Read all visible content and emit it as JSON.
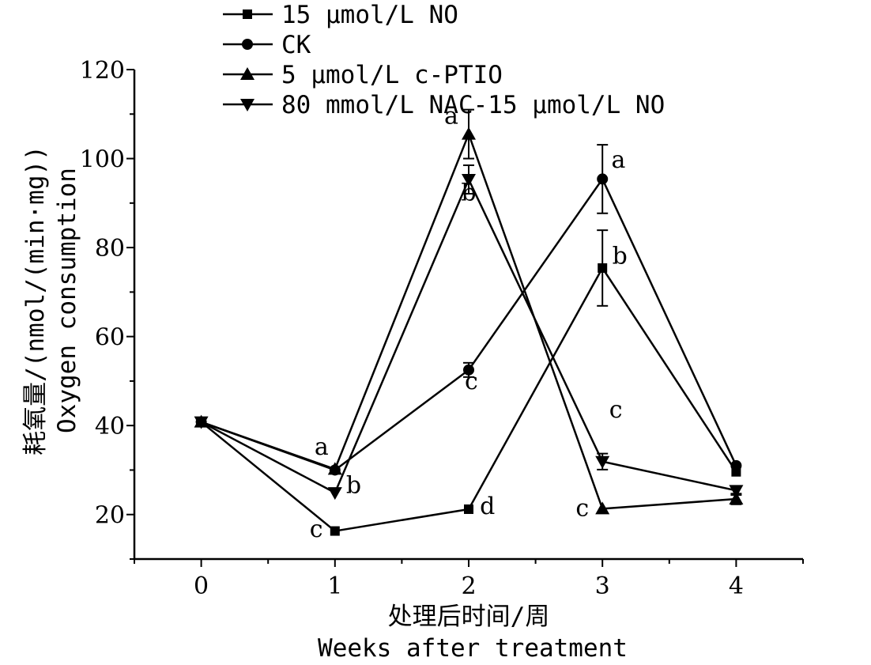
{
  "chart_data": {
    "type": "line",
    "x": [
      0,
      1,
      2,
      3,
      4
    ],
    "xlim": [
      -0.5,
      4.5
    ],
    "ylim": [
      10,
      120
    ],
    "xticks": [
      "0",
      "1",
      "2",
      "3",
      "4"
    ],
    "yticks": [
      "20",
      "40",
      "60",
      "80",
      "100",
      "120"
    ],
    "xlabel_cn": "处理后时间/周",
    "xlabel_en": "Weeks after treatment",
    "ylabel_cn": "耗氧量/(nmol/(min·mg))",
    "ylabel_en": "Oxygen consumption",
    "grid": false,
    "legend_position": "top-left",
    "series": [
      {
        "name": "15 μmol/L NO",
        "marker": "square",
        "values": [
          40.8,
          16.3,
          21.2,
          75.4,
          29.6
        ],
        "errors": [
          0,
          0,
          0,
          8.5,
          0
        ]
      },
      {
        "name": "CK",
        "marker": "circle",
        "values": [
          40.8,
          30.0,
          52.5,
          95.4,
          31.0
        ],
        "errors": [
          0,
          0,
          1.6,
          7.7,
          0
        ]
      },
      {
        "name": "5 μmol/L c-PTIO",
        "marker": "triangle-up",
        "values": [
          40.8,
          30.2,
          105.5,
          21.3,
          23.5
        ],
        "errors": [
          0,
          0,
          5.5,
          0,
          1.2
        ]
      },
      {
        "name": "80 mmol/L NAC-15 μmol/L NO",
        "marker": "triangle-down",
        "values": [
          40.8,
          24.9,
          95.3,
          31.9,
          25.4
        ],
        "errors": [
          0,
          0,
          3.2,
          1.8,
          1.0
        ]
      }
    ],
    "annotations": [
      {
        "text": "a",
        "x": 0.9,
        "y": 33.5
      },
      {
        "text": "b",
        "x": 1.14,
        "y": 24.8
      },
      {
        "text": "c",
        "x": 0.86,
        "y": 15.0
      },
      {
        "text": "a",
        "x": 1.87,
        "y": 107.8
      },
      {
        "text": "b",
        "x": 2.0,
        "y": 90.6
      },
      {
        "text": "c",
        "x": 2.02,
        "y": 48.2
      },
      {
        "text": "d",
        "x": 2.14,
        "y": 20.1
      },
      {
        "text": "a",
        "x": 3.12,
        "y": 98.0
      },
      {
        "text": "b",
        "x": 3.13,
        "y": 76.4
      },
      {
        "text": "c",
        "x": 3.1,
        "y": 41.8
      },
      {
        "text": "c",
        "x": 2.85,
        "y": 19.7
      }
    ]
  }
}
